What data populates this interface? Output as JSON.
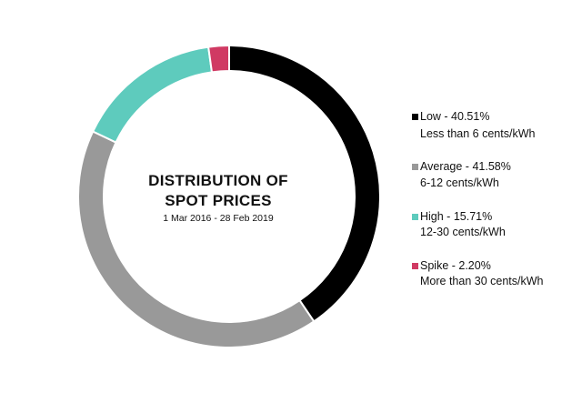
{
  "chart_data": {
    "type": "pie",
    "style": "donut",
    "title_lines": [
      "DISTRIBUTION OF",
      "SPOT PRICES"
    ],
    "subtitle": "1 Mar 2016 - 28 Feb 2019",
    "legend_position": "right",
    "slices": [
      {
        "label": "Low - 40.51%",
        "range": "Less than 6 cents/kWh",
        "value": 40.51,
        "color": "#000000"
      },
      {
        "label": "Average - 41.58%",
        "range": "6-12 cents/kWh",
        "value": 41.58,
        "color": "#999999"
      },
      {
        "label": "High - 15.71%",
        "range": "12-30 cents/kWh",
        "value": 15.71,
        "color": "#5ecbbd"
      },
      {
        "label": "Spike - 2.20%",
        "range": "More than 30 cents/kWh",
        "value": 2.2,
        "color": "#d03a63"
      }
    ]
  }
}
